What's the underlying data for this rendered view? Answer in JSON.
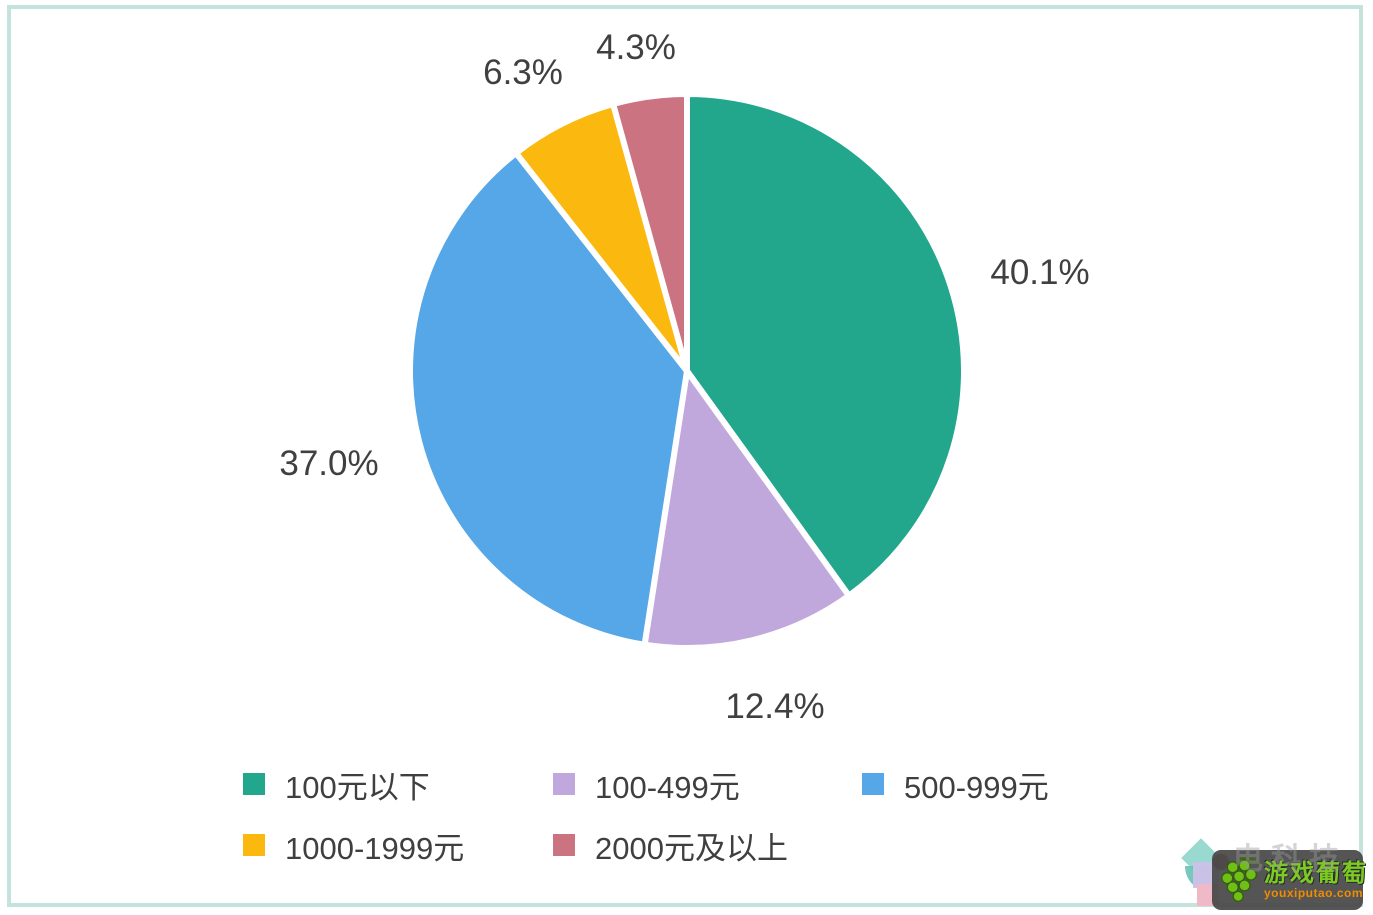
{
  "frame": {
    "border_color": "#C5E3DD"
  },
  "chart_data": {
    "type": "pie",
    "title": "",
    "categories": [
      "100元以下",
      "100-499元",
      "500-999元",
      "1000-1999元",
      "2000元及以上"
    ],
    "values": [
      40.1,
      12.4,
      37.0,
      6.3,
      4.3
    ],
    "labels": [
      "40.1%",
      "12.4%",
      "37.0%",
      "6.3%",
      "4.3%"
    ],
    "colors": [
      "#22A68C",
      "#C1A8DC",
      "#55A7E8",
      "#FBB80E",
      "#CB7380"
    ],
    "slice_border_color": "#FFFFFF",
    "label_color": "#404040",
    "legend_position": "bottom",
    "start_angle_deg": 0,
    "direction": "clockwise",
    "background": "#FFFFFF"
  },
  "watermark": {
    "site_name": "游戏葡萄",
    "site_domain": "youxiputao.com",
    "ghost_text": "电科技"
  }
}
